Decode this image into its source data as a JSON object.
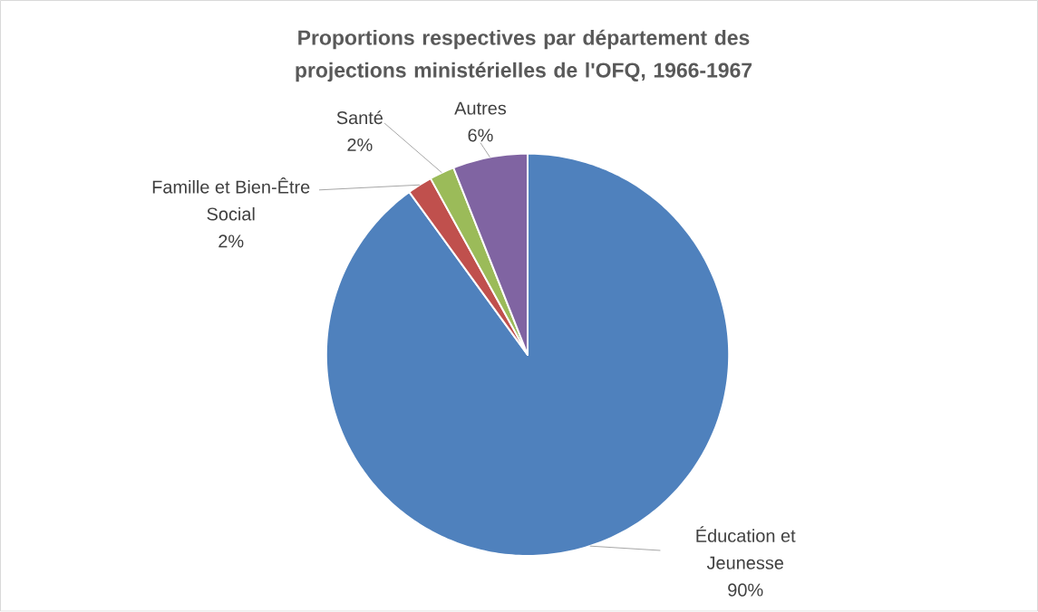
{
  "chart_data": {
    "type": "pie",
    "title": "Proportions respectives par département des projections ministérielles de l'OFQ, 1966-1967",
    "categories": [
      "Éducation et Jeunesse",
      "Famille et Bien-Être Social",
      "Santé",
      "Autres"
    ],
    "values": [
      90,
      2,
      2,
      6
    ],
    "colors": [
      "#4f81bd",
      "#c0504d",
      "#9bbb59",
      "#8064a2"
    ],
    "value_labels": [
      "90%",
      "2%",
      "2%",
      "6%"
    ]
  }
}
